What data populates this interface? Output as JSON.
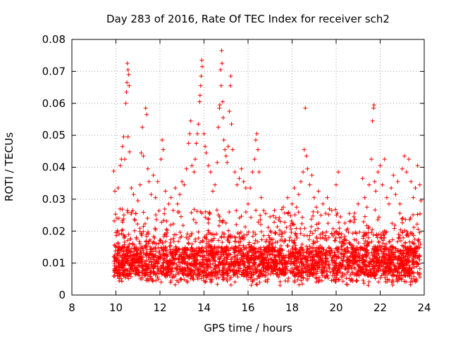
{
  "chart_data": {
    "type": "scatter",
    "title": "Day 283 of 2016, Rate Of TEC Index for receiver sch2",
    "xlabel": "GPS time / hours",
    "ylabel": "ROTI / TECUs",
    "xlim": [
      8,
      24
    ],
    "ylim": [
      0,
      0.08
    ],
    "xticks": [
      8,
      10,
      12,
      14,
      16,
      18,
      20,
      22,
      24
    ],
    "yticks": [
      0,
      0.01,
      0.02,
      0.03,
      0.04,
      0.05,
      0.06,
      0.07,
      0.08
    ],
    "ytick_labels": [
      "0",
      "0.01",
      "0.02",
      "0.03",
      "0.04",
      "0.05",
      "0.06",
      "0.07",
      "0.08"
    ],
    "grid": true,
    "marker": "plus",
    "series": [
      {
        "name": "ROTI",
        "color": "#ff0000",
        "points": [
          [
            9.9,
            0.0388
          ],
          [
            9.95,
            0.0325
          ],
          [
            10.05,
            0.024
          ],
          [
            10.1,
            0.0335
          ],
          [
            10.2,
            0.0405
          ],
          [
            10.25,
            0.0425
          ],
          [
            10.3,
            0.0465
          ],
          [
            10.35,
            0.0495
          ],
          [
            10.4,
            0.0425
          ],
          [
            10.45,
            0.06
          ],
          [
            10.48,
            0.0635
          ],
          [
            10.5,
            0.0665
          ],
          [
            10.52,
            0.0725
          ],
          [
            10.55,
            0.0705
          ],
          [
            10.58,
            0.069
          ],
          [
            10.6,
            0.0655
          ],
          [
            10.55,
            0.0495
          ],
          [
            10.62,
            0.0448
          ],
          [
            10.7,
            0.0335
          ],
          [
            10.8,
            0.0315
          ],
          [
            10.9,
            0.0255
          ],
          [
            11.0,
            0.0295
          ],
          [
            11.1,
            0.0345
          ],
          [
            11.15,
            0.0445
          ],
          [
            11.2,
            0.0525
          ],
          [
            11.25,
            0.0435
          ],
          [
            11.35,
            0.0585
          ],
          [
            11.4,
            0.0565
          ],
          [
            11.45,
            0.0395
          ],
          [
            11.5,
            0.0355
          ],
          [
            11.6,
            0.0315
          ],
          [
            11.7,
            0.0375
          ],
          [
            11.8,
            0.0305
          ],
          [
            11.9,
            0.0355
          ],
          [
            12.05,
            0.0425
          ],
          [
            12.1,
            0.0485
          ],
          [
            12.15,
            0.0455
          ],
          [
            12.25,
            0.0325
          ],
          [
            12.4,
            0.0285
          ],
          [
            12.5,
            0.0305
          ],
          [
            12.6,
            0.0265
          ],
          [
            12.7,
            0.0335
          ],
          [
            12.8,
            0.0285
          ],
          [
            12.9,
            0.0315
          ],
          [
            13.0,
            0.0355
          ],
          [
            13.1,
            0.0345
          ],
          [
            13.2,
            0.0395
          ],
          [
            13.3,
            0.0475
          ],
          [
            13.35,
            0.0505
          ],
          [
            13.4,
            0.0545
          ],
          [
            13.45,
            0.0405
          ],
          [
            13.55,
            0.0385
          ],
          [
            13.6,
            0.0425
          ],
          [
            13.65,
            0.0475
          ],
          [
            13.7,
            0.0505
          ],
          [
            13.75,
            0.0535
          ],
          [
            13.8,
            0.0605
          ],
          [
            13.82,
            0.0625
          ],
          [
            13.85,
            0.0655
          ],
          [
            13.87,
            0.0685
          ],
          [
            13.9,
            0.0735
          ],
          [
            13.92,
            0.0715
          ],
          [
            14.0,
            0.0505
          ],
          [
            14.05,
            0.0465
          ],
          [
            14.1,
            0.0445
          ],
          [
            14.2,
            0.0405
          ],
          [
            14.3,
            0.0385
          ],
          [
            14.4,
            0.0325
          ],
          [
            14.5,
            0.0345
          ],
          [
            14.6,
            0.0415
          ],
          [
            14.65,
            0.0525
          ],
          [
            14.7,
            0.0585
          ],
          [
            14.72,
            0.0595
          ],
          [
            14.75,
            0.0705
          ],
          [
            14.78,
            0.0655
          ],
          [
            14.8,
            0.0765
          ],
          [
            14.82,
            0.0725
          ],
          [
            14.85,
            0.0605
          ],
          [
            14.87,
            0.0555
          ],
          [
            14.9,
            0.0485
          ],
          [
            14.95,
            0.0455
          ],
          [
            15.0,
            0.0435
          ],
          [
            15.05,
            0.0415
          ],
          [
            15.1,
            0.0465
          ],
          [
            15.15,
            0.0575
          ],
          [
            15.2,
            0.0655
          ],
          [
            15.22,
            0.0685
          ],
          [
            15.25,
            0.0535
          ],
          [
            15.3,
            0.0455
          ],
          [
            15.4,
            0.0385
          ],
          [
            15.5,
            0.0345
          ],
          [
            15.6,
            0.0365
          ],
          [
            15.7,
            0.0395
          ],
          [
            15.8,
            0.0355
          ],
          [
            15.9,
            0.0335
          ],
          [
            16.0,
            0.0285
          ],
          [
            16.1,
            0.0335
          ],
          [
            16.2,
            0.0385
          ],
          [
            16.3,
            0.0425
          ],
          [
            16.35,
            0.0485
          ],
          [
            16.4,
            0.0505
          ],
          [
            16.45,
            0.0455
          ],
          [
            16.5,
            0.0385
          ],
          [
            16.6,
            0.0305
          ],
          [
            16.8,
            0.0255
          ],
          [
            17.0,
            0.0245
          ],
          [
            17.2,
            0.0265
          ],
          [
            17.4,
            0.0235
          ],
          [
            17.6,
            0.0275
          ],
          [
            17.8,
            0.0305
          ],
          [
            18.0,
            0.0285
          ],
          [
            18.1,
            0.0335
          ],
          [
            18.2,
            0.0275
          ],
          [
            18.3,
            0.0315
          ],
          [
            18.4,
            0.0355
          ],
          [
            18.5,
            0.0385
          ],
          [
            18.55,
            0.0455
          ],
          [
            18.6,
            0.0585
          ],
          [
            18.65,
            0.0435
          ],
          [
            18.7,
            0.0395
          ],
          [
            18.8,
            0.0345
          ],
          [
            18.9,
            0.0375
          ],
          [
            19.0,
            0.0305
          ],
          [
            19.1,
            0.0275
          ],
          [
            19.2,
            0.0325
          ],
          [
            19.4,
            0.0285
          ],
          [
            19.6,
            0.0305
          ],
          [
            19.8,
            0.0265
          ],
          [
            20.0,
            0.0345
          ],
          [
            20.1,
            0.0385
          ],
          [
            20.2,
            0.0245
          ],
          [
            20.4,
            0.0225
          ],
          [
            20.6,
            0.0255
          ],
          [
            20.8,
            0.0245
          ],
          [
            21.0,
            0.0285
          ],
          [
            21.2,
            0.0365
          ],
          [
            21.3,
            0.0305
          ],
          [
            21.4,
            0.0275
          ],
          [
            21.5,
            0.0345
          ],
          [
            21.6,
            0.0425
          ],
          [
            21.65,
            0.0545
          ],
          [
            21.7,
            0.0585
          ],
          [
            21.72,
            0.0595
          ],
          [
            21.75,
            0.0355
          ],
          [
            21.8,
            0.0325
          ],
          [
            21.9,
            0.0385
          ],
          [
            22.0,
            0.0405
          ],
          [
            22.1,
            0.0345
          ],
          [
            22.2,
            0.0425
          ],
          [
            22.3,
            0.0305
          ],
          [
            22.4,
            0.0285
          ],
          [
            22.5,
            0.0335
          ],
          [
            22.6,
            0.0375
          ],
          [
            22.7,
            0.0315
          ],
          [
            22.8,
            0.0355
          ],
          [
            22.9,
            0.0285
          ],
          [
            23.0,
            0.0395
          ],
          [
            23.1,
            0.0435
          ],
          [
            23.2,
            0.0385
          ],
          [
            23.3,
            0.0425
          ],
          [
            23.4,
            0.0355
          ],
          [
            23.5,
            0.0305
          ],
          [
            23.6,
            0.0335
          ],
          [
            23.7,
            0.0405
          ],
          [
            23.8,
            0.0345
          ],
          [
            23.85,
            0.0295
          ]
        ]
      }
    ],
    "cloud": {
      "x_start": 9.9,
      "x_end": 23.85,
      "y_floor": 0.003,
      "description": "dense band of roughly 0.004 to 0.025 TECU across the whole interval"
    }
  }
}
